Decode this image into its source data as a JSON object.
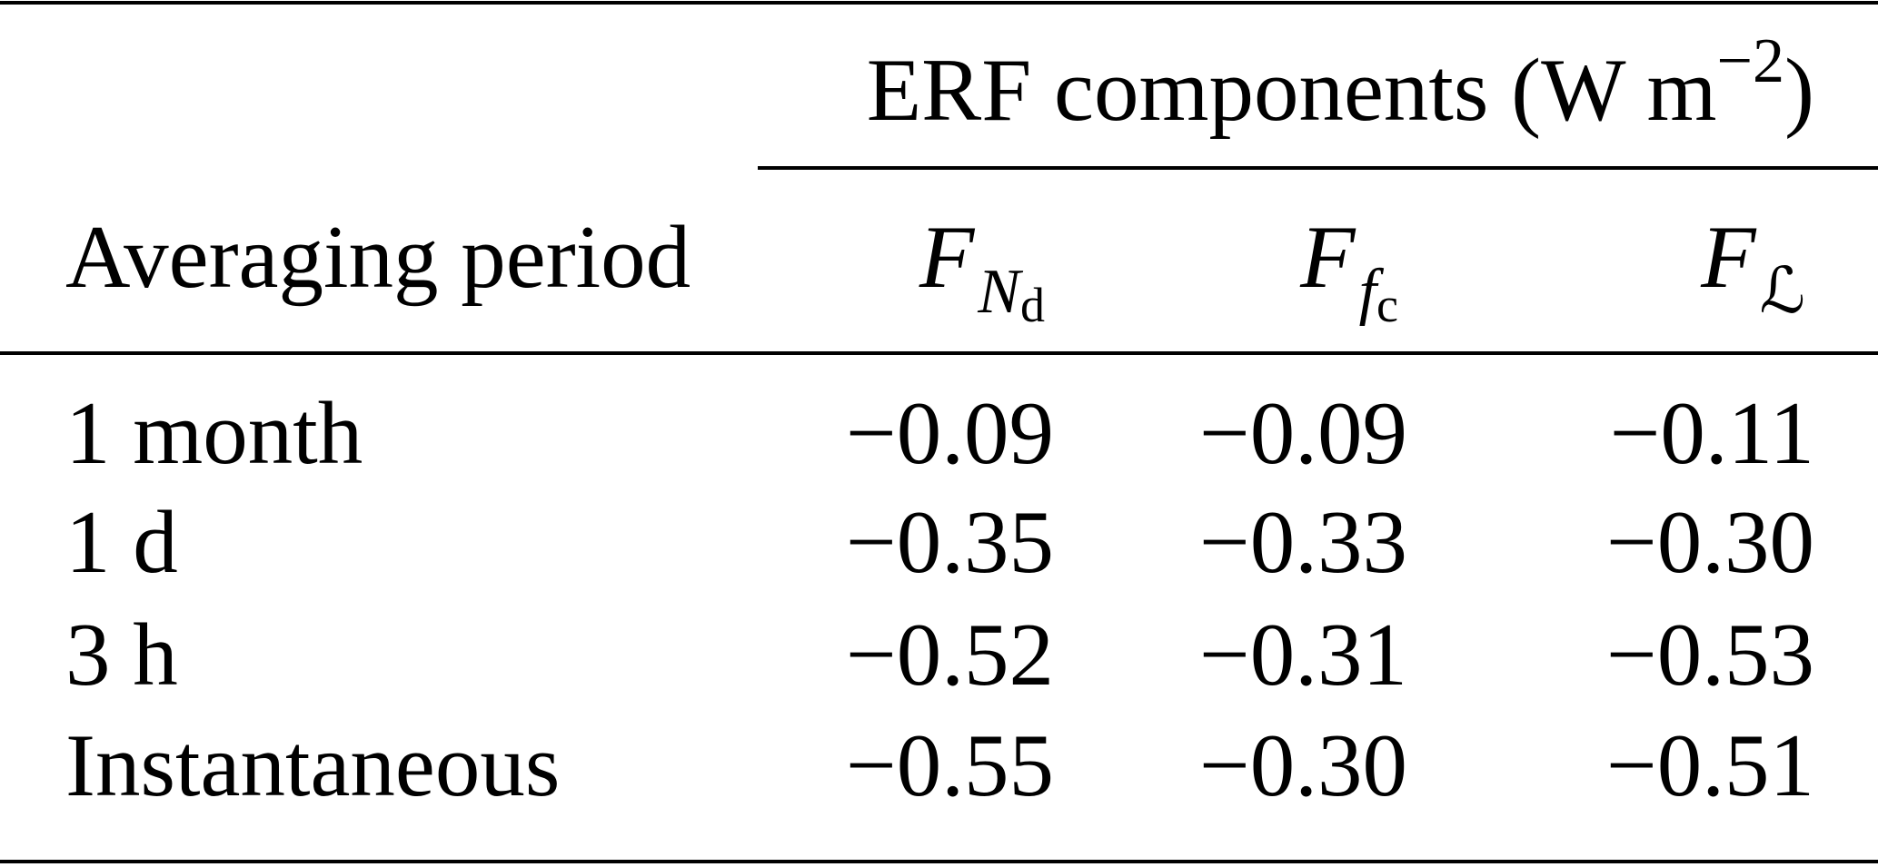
{
  "table": {
    "group_header": {
      "text": "ERF components (W m",
      "exponent": "−2",
      "close": ")"
    },
    "header": {
      "row_label": "Averaging period",
      "columns": [
        {
          "symbol": "F",
          "sub": "N",
          "subsub": "d"
        },
        {
          "symbol": "F",
          "sub": "f",
          "subsub": "c"
        },
        {
          "symbol": "F",
          "sub": "ℒ"
        }
      ]
    },
    "rows": [
      [
        "1 month",
        "−0.09",
        "−0.09",
        "−0.11"
      ],
      [
        "1 d",
        "−0.35",
        "−0.33",
        "−0.30"
      ],
      [
        "3 h",
        "−0.52",
        "−0.31",
        "−0.53"
      ],
      [
        "Instantaneous",
        "−0.55",
        "−0.30",
        "−0.51"
      ]
    ]
  }
}
